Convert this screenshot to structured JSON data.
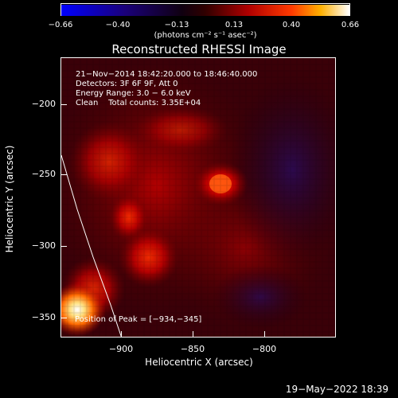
{
  "colorbar": {
    "ticks": [
      "−0.66",
      "−0.40",
      "−0.13",
      "0.13",
      "0.40",
      "0.66"
    ],
    "unit": "(photons cm⁻² s⁻¹ asec⁻²)"
  },
  "title": "Reconstructed RHESSI Image",
  "info": {
    "line1": "21−Nov−2014 18:42:20.000 to 18:46:40.000",
    "line2": "Detectors: 3F 6F 9F, Att 0",
    "line3": "Energy Range: 3.0 − 6.0 keV",
    "line4": "Clean    Total counts: 3.35E+04"
  },
  "peak_text": "Position of Peak = [−934,−345]",
  "axes": {
    "xlabel": "Heliocentric X (arcsec)",
    "ylabel": "Heliocentric Y (arcsec)",
    "xticks": [
      "−900",
      "−850",
      "−800"
    ],
    "yticks": [
      "−200",
      "−250",
      "−300",
      "−350"
    ]
  },
  "timestamp": "19−May−2022 18:39"
}
